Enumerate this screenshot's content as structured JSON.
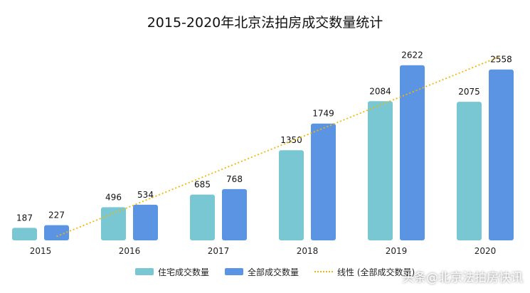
{
  "chart_data": {
    "type": "bar",
    "title": "2015-2020年北京法拍房成交数量统计",
    "categories": [
      "2015",
      "2016",
      "2017",
      "2018",
      "2019",
      "2020"
    ],
    "series": [
      {
        "name": "住宅成交数量",
        "values": [
          187,
          496,
          685,
          1350,
          2084,
          2075
        ],
        "color": "#7ac7d4"
      },
      {
        "name": "全部成交数量",
        "values": [
          227,
          534,
          768,
          1749,
          2622,
          2558
        ],
        "color": "#5b94e3"
      }
    ],
    "trendline": {
      "name": "线性 (全部成交数量)",
      "type": "linear",
      "of_series": "全部成交数量",
      "color": "#f2b705",
      "style": "dotted"
    },
    "ylim": [
      0,
      2800
    ],
    "grid": false,
    "legend_position": "bottom",
    "show_data_labels": true
  },
  "watermark": {
    "prefix": "头条",
    "handle": "@北京法拍房快讯"
  }
}
